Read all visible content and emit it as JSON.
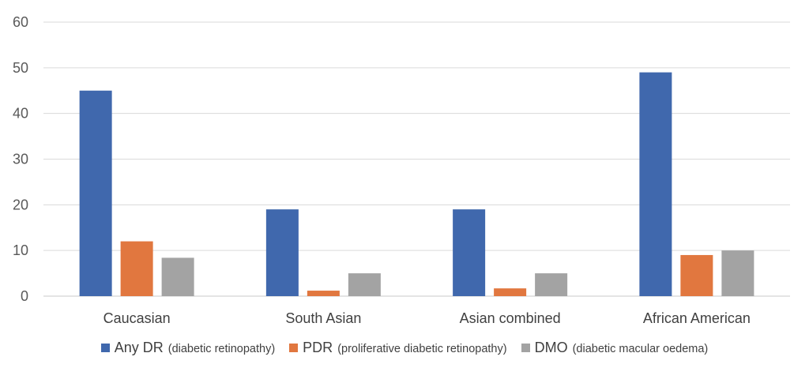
{
  "chart_data": {
    "type": "bar",
    "categories": [
      "Caucasian",
      "South Asian",
      "Asian  combined",
      "African American"
    ],
    "series": [
      {
        "name": "Any DR",
        "name_detail": "(diabetic retinopathy)",
        "color": "#4068ad",
        "values": [
          45,
          19,
          19,
          49
        ]
      },
      {
        "name": "PDR",
        "name_detail": "(proliferative diabetic retinopathy)",
        "color": "#e1773f",
        "values": [
          12,
          1.2,
          1.7,
          9
        ]
      },
      {
        "name": "DMO",
        "name_detail": "(diabetic macular oedema)",
        "color": "#a3a3a3",
        "values": [
          8.4,
          5,
          5,
          10
        ]
      }
    ],
    "y_ticks": [
      0,
      10,
      20,
      30,
      40,
      50,
      60
    ],
    "ylim": [
      0,
      60
    ],
    "grid": true,
    "legend_position": "bottom"
  }
}
